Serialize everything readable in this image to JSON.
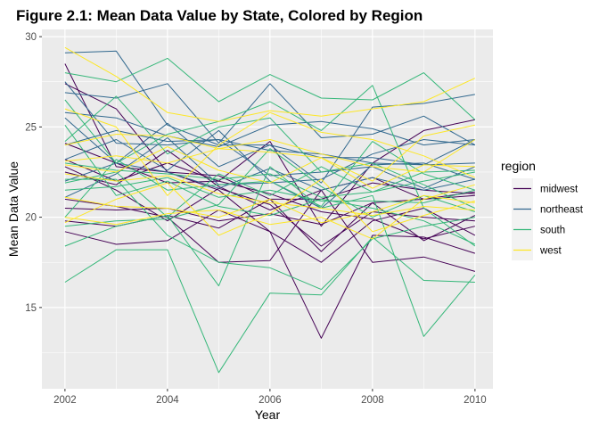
{
  "chart_data": {
    "type": "line",
    "title": "Figure 2.1: Mean Data Value by State, Colored by Region",
    "xlabel": "Year",
    "ylabel": "Mean Data Value",
    "xlim": [
      2001.55,
      2010.35
    ],
    "ylim": [
      10.5,
      30.4
    ],
    "x_ticks": [
      "2002",
      "2004",
      "2006",
      "2008",
      "2010"
    ],
    "y_ticks": [
      "15",
      "20",
      "25",
      "30"
    ],
    "grid": true,
    "background": "#ebebeb",
    "legend": {
      "title": "region",
      "position": "right"
    },
    "x": [
      2002,
      2003,
      2004,
      2005,
      2006,
      2007,
      2008,
      2009,
      2010
    ],
    "regions": [
      {
        "name": "midwest",
        "color": "#440154"
      },
      {
        "name": "northeast",
        "color": "#31688e"
      },
      {
        "name": "south",
        "color": "#35b779"
      },
      {
        "name": "west",
        "color": "#fde725"
      }
    ],
    "series": [
      {
        "region": "midwest",
        "values": [
          28.5,
          22.8,
          22.5,
          21.5,
          19.2,
          13.3,
          19.0,
          18.9,
          18.0
        ]
      },
      {
        "region": "midwest",
        "values": [
          23.2,
          22.0,
          23.0,
          22.0,
          24.2,
          19.5,
          23.0,
          24.8,
          25.4
        ]
      },
      {
        "region": "midwest",
        "values": [
          21.0,
          20.6,
          20.0,
          17.5,
          17.6,
          21.5,
          17.5,
          17.8,
          17.0
        ]
      },
      {
        "region": "midwest",
        "values": [
          19.2,
          18.5,
          18.7,
          20.4,
          19.2,
          17.5,
          19.8,
          20.5,
          19.0
        ]
      },
      {
        "region": "midwest",
        "values": [
          22.5,
          21.8,
          23.7,
          21.7,
          20.4,
          21.5,
          22.2,
          21.0,
          21.2
        ]
      },
      {
        "region": "midwest",
        "values": [
          19.8,
          19.5,
          20.1,
          19.4,
          21.0,
          18.1,
          20.8,
          18.7,
          20.1
        ]
      },
      {
        "region": "midwest",
        "values": [
          24.1,
          23.0,
          21.9,
          22.0,
          21.3,
          20.3,
          19.9,
          18.8,
          19.5
        ]
      },
      {
        "region": "midwest",
        "values": [
          20.5,
          20.4,
          20.5,
          19.8,
          20.2,
          19.6,
          20.8,
          21.0,
          21.4
        ]
      },
      {
        "region": "midwest",
        "values": [
          22.8,
          21.5,
          19.8,
          21.6,
          20.7,
          18.4,
          20.3,
          20.0,
          19.8
        ]
      },
      {
        "region": "midwest",
        "values": [
          27.4,
          26.0,
          22.5,
          22.3,
          21.0,
          21.0,
          21.9,
          21.5,
          21.3
        ]
      },
      {
        "region": "northeast",
        "values": [
          29.1,
          29.2,
          25.1,
          24.0,
          24.0,
          21.9,
          26.1,
          26.3,
          26.8
        ]
      },
      {
        "region": "northeast",
        "values": [
          26.9,
          26.6,
          27.4,
          24.1,
          27.4,
          24.4,
          24.6,
          25.6,
          24.0
        ]
      },
      {
        "region": "northeast",
        "values": [
          24.0,
          24.8,
          24.2,
          24.3,
          23.7,
          23.5,
          23.0,
          22.9,
          23.0
        ]
      },
      {
        "region": "northeast",
        "values": [
          25.5,
          23.0,
          25.2,
          22.8,
          24.0,
          23.3,
          23.3,
          22.9,
          24.3
        ]
      },
      {
        "region": "northeast",
        "values": [
          27.5,
          24.1,
          24.0,
          24.3,
          22.3,
          22.5,
          22.8,
          21.6,
          22.8
        ]
      },
      {
        "region": "northeast",
        "values": [
          22.0,
          23.0,
          22.5,
          21.6,
          22.7,
          21.5,
          22.2,
          21.5,
          22.1
        ]
      },
      {
        "region": "northeast",
        "values": [
          25.8,
          25.5,
          24.5,
          23.9,
          25.1,
          25.3,
          24.9,
          24.0,
          24.3
        ]
      },
      {
        "region": "northeast",
        "values": [
          23.2,
          24.3,
          22.6,
          24.8,
          22.0,
          20.5,
          22.9,
          23.0,
          22.1
        ]
      },
      {
        "region": "northeast",
        "values": [
          21.1,
          22.4,
          24.4,
          21.8,
          21.9,
          22.1,
          23.5,
          24.3,
          24.0
        ]
      },
      {
        "region": "south",
        "values": [
          16.4,
          18.2,
          18.2,
          11.4,
          15.8,
          15.7,
          18.9,
          16.5,
          16.4
        ]
      },
      {
        "region": "south",
        "values": [
          18.4,
          19.5,
          20.1,
          16.2,
          22.8,
          20.5,
          21.2,
          13.4,
          16.8
        ]
      },
      {
        "region": "south",
        "values": [
          28.0,
          27.5,
          28.8,
          26.4,
          27.9,
          26.6,
          26.5,
          28.0,
          25.4
        ]
      },
      {
        "region": "south",
        "values": [
          26.5,
          23.0,
          24.6,
          25.3,
          26.4,
          24.8,
          27.3,
          20.5,
          18.4
        ]
      },
      {
        "region": "south",
        "values": [
          22.1,
          22.1,
          19.0,
          17.5,
          17.2,
          16.0,
          18.8,
          19.5,
          20.0
        ]
      },
      {
        "region": "south",
        "values": [
          24.2,
          26.7,
          23.5,
          25.0,
          25.5,
          22.5,
          23.0,
          21.8,
          20.5
        ]
      },
      {
        "region": "south",
        "values": [
          20.0,
          23.2,
          21.5,
          21.8,
          22.0,
          20.6,
          24.2,
          22.4,
          21.5
        ]
      },
      {
        "region": "south",
        "values": [
          25.1,
          21.2,
          22.0,
          20.6,
          20.1,
          21.0,
          20.5,
          19.8,
          18.5
        ]
      },
      {
        "region": "south",
        "values": [
          21.9,
          22.5,
          20.0,
          22.4,
          21.2,
          22.8,
          21.4,
          22.5,
          22.6
        ]
      },
      {
        "region": "south",
        "values": [
          19.5,
          19.8,
          19.9,
          20.7,
          23.8,
          21.7,
          20.0,
          21.2,
          20.3
        ]
      },
      {
        "region": "south",
        "values": [
          21.5,
          21.7,
          22.2,
          21.1,
          21.5,
          20.9,
          20.9,
          20.8,
          21.5
        ]
      },
      {
        "region": "south",
        "values": [
          23.0,
          22.6,
          22.4,
          22.1,
          22.4,
          21.1,
          21.4,
          22.0,
          22.5
        ]
      },
      {
        "region": "west",
        "values": [
          29.4,
          27.8,
          25.8,
          25.3,
          25.9,
          25.6,
          26.0,
          26.4,
          27.7
        ]
      },
      {
        "region": "west",
        "values": [
          23.1,
          23.4,
          23.0,
          23.8,
          23.6,
          23.3,
          22.0,
          24.5,
          25.1
        ]
      },
      {
        "region": "west",
        "values": [
          19.7,
          21.0,
          21.9,
          19.0,
          20.2,
          22.1,
          19.2,
          20.1,
          20.9
        ]
      },
      {
        "region": "west",
        "values": [
          20.0,
          19.6,
          20.2,
          20.4,
          19.6,
          20.0,
          18.8,
          21.0,
          21.8
        ]
      },
      {
        "region": "west",
        "values": [
          26.0,
          25.0,
          21.2,
          24.0,
          25.8,
          24.7,
          24.3,
          23.4,
          22.2
        ]
      },
      {
        "region": "west",
        "values": [
          22.9,
          22.5,
          23.9,
          22.6,
          21.9,
          23.3,
          21.6,
          22.9,
          22.8
        ]
      },
      {
        "region": "west",
        "values": [
          24.0,
          24.6,
          24.5,
          23.8,
          24.3,
          23.5,
          22.8,
          22.5,
          24.3
        ]
      },
      {
        "region": "west",
        "values": [
          21.1,
          20.6,
          20.5,
          20.0,
          21.0,
          19.7,
          20.3,
          21.2,
          20.8
        ]
      },
      {
        "region": "west",
        "values": [
          22.4,
          22.0,
          22.3,
          21.3,
          20.8,
          20.5,
          20.1,
          20.6,
          20.4
        ]
      }
    ]
  }
}
